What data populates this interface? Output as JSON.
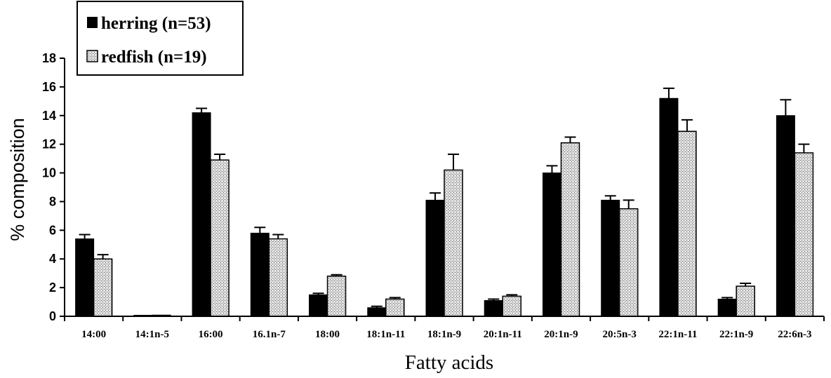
{
  "chart_data": {
    "type": "bar",
    "title": "",
    "xlabel": "Fatty acids",
    "ylabel": "% composition",
    "ylim": [
      0,
      18
    ],
    "yticks": [
      0,
      2,
      4,
      6,
      8,
      10,
      12,
      14,
      16,
      18
    ],
    "grid": false,
    "legend_position": "top-left",
    "categories": [
      "14:00",
      "14:1n-5",
      "16:00",
      "16.1n-7",
      "18:00",
      "18:1n-11",
      "18:1n-9",
      "20:1n-11",
      "20:1n-9",
      "20:5n-3",
      "22:1n-11",
      "22:1n-9",
      "22:6n-3"
    ],
    "series": [
      {
        "name": "herring (n=53)",
        "color": "#000000",
        "pattern": "solid",
        "values": [
          5.4,
          0.05,
          14.2,
          5.8,
          1.5,
          0.6,
          8.1,
          1.1,
          10.0,
          8.1,
          15.2,
          1.2,
          14.0
        ],
        "errors": [
          0.3,
          0.0,
          0.3,
          0.4,
          0.1,
          0.1,
          0.5,
          0.1,
          0.5,
          0.3,
          0.7,
          0.1,
          1.1
        ]
      },
      {
        "name": "redfish (n=19)",
        "color": "#cfcfcf",
        "pattern": "stipple",
        "values": [
          4.0,
          0.05,
          10.9,
          5.4,
          2.8,
          1.2,
          10.2,
          1.4,
          12.1,
          7.5,
          12.9,
          2.1,
          11.4
        ],
        "errors": [
          0.3,
          0.0,
          0.4,
          0.3,
          0.1,
          0.1,
          1.1,
          0.1,
          0.4,
          0.6,
          0.8,
          0.2,
          0.6
        ]
      }
    ]
  }
}
